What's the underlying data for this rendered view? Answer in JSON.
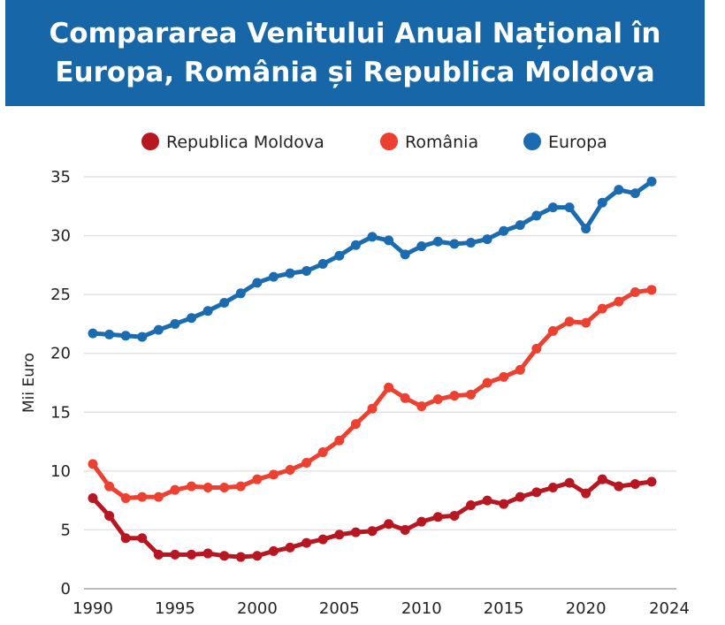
{
  "chart_data": {
    "type": "line",
    "title_lines": [
      "Compararea Venitului Anual Național în",
      "Europa, România și Republica Moldova"
    ],
    "xlabel": "",
    "ylabel": "Mii Euro",
    "xlim": [
      1990,
      2024
    ],
    "ylim": [
      0,
      35
    ],
    "x_ticks": [
      1990,
      1995,
      2000,
      2005,
      2010,
      2015,
      2020,
      2024
    ],
    "y_ticks": [
      0,
      5,
      10,
      15,
      20,
      25,
      30,
      35
    ],
    "grid": "horizontal",
    "legend_position": "top",
    "x": [
      1990,
      1991,
      1992,
      1993,
      1994,
      1995,
      1996,
      1997,
      1998,
      1999,
      2000,
      2001,
      2002,
      2003,
      2004,
      2005,
      2006,
      2007,
      2008,
      2009,
      2010,
      2011,
      2012,
      2013,
      2014,
      2015,
      2016,
      2017,
      2018,
      2019,
      2020,
      2021,
      2022,
      2023,
      2024
    ],
    "series": [
      {
        "name": "Republica Moldova",
        "color": "#b81620",
        "values": [
          7.7,
          6.2,
          4.3,
          4.3,
          2.9,
          2.9,
          2.9,
          3.0,
          2.8,
          2.7,
          2.8,
          3.2,
          3.5,
          3.9,
          4.2,
          4.6,
          4.8,
          4.9,
          5.5,
          5.0,
          5.7,
          6.1,
          6.2,
          7.1,
          7.5,
          7.2,
          7.8,
          8.2,
          8.6,
          9.0,
          8.1,
          9.3,
          8.7,
          8.9,
          9.1
        ]
      },
      {
        "name": "România",
        "color": "#ee4030",
        "values": [
          10.6,
          8.7,
          7.7,
          7.8,
          7.8,
          8.4,
          8.7,
          8.6,
          8.6,
          8.7,
          9.3,
          9.7,
          10.1,
          10.7,
          11.6,
          12.6,
          14.0,
          15.3,
          17.1,
          16.2,
          15.5,
          16.1,
          16.4,
          16.5,
          17.5,
          18.0,
          18.6,
          20.4,
          21.9,
          22.7,
          22.6,
          23.8,
          24.4,
          25.2,
          25.4
        ]
      },
      {
        "name": "Europa",
        "color": "#1a6bb0",
        "values": [
          21.7,
          21.6,
          21.5,
          21.4,
          22.0,
          22.5,
          23.0,
          23.6,
          24.3,
          25.1,
          26.0,
          26.5,
          26.8,
          27.0,
          27.6,
          28.3,
          29.2,
          29.9,
          29.6,
          28.4,
          29.1,
          29.5,
          29.3,
          29.4,
          29.7,
          30.4,
          30.9,
          31.7,
          32.4,
          32.4,
          30.6,
          32.8,
          33.9,
          33.6,
          34.6
        ]
      }
    ]
  },
  "colors": {
    "banner": "#1666a8",
    "grid": "#e2e2e2"
  }
}
